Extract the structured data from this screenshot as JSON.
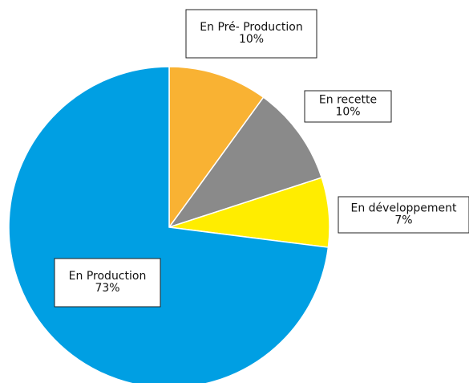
{
  "chart_data": {
    "type": "pie",
    "categories": [
      "En Pré- Production",
      "En recette",
      "En développement",
      "En Production"
    ],
    "values": [
      10,
      10,
      7,
      73
    ],
    "value_labels": [
      "10%",
      "10%",
      "7%",
      "73%"
    ],
    "colors": [
      "#f9b233",
      "#8a8a8a",
      "#ffed00",
      "#009fe3"
    ]
  }
}
